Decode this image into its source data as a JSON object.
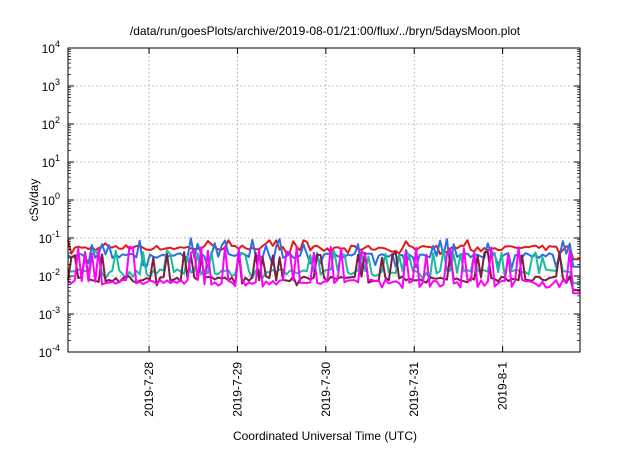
{
  "chart_data": {
    "type": "line",
    "title": "/data/run/goesPlots/archive/2019-08-01/21:00/flux/../bryn/5daysMoon.plot",
    "xlabel": "Coordinated Universal Time (UTC)",
    "ylabel": "cSv/day",
    "yscale": "log",
    "ylim": [
      0.0001,
      10000
    ],
    "xlim": [
      "2019-07-27T02:00",
      "2019-08-01T21:00"
    ],
    "grid": true,
    "y_ticks": [
      {
        "value": 0.0001,
        "base": "10",
        "exp": "-4"
      },
      {
        "value": 0.001,
        "base": "10",
        "exp": "-3"
      },
      {
        "value": 0.01,
        "base": "10",
        "exp": "-2"
      },
      {
        "value": 0.1,
        "base": "10",
        "exp": "-1"
      },
      {
        "value": 1,
        "base": "10",
        "exp": "0"
      },
      {
        "value": 10,
        "base": "10",
        "exp": "1"
      },
      {
        "value": 100,
        "base": "10",
        "exp": "2"
      },
      {
        "value": 1000,
        "base": "10",
        "exp": "3"
      },
      {
        "value": 10000,
        "base": "10",
        "exp": "4"
      }
    ],
    "x_ticks": [
      {
        "value": "2019-07-28T00:00",
        "label": "2019-7-28"
      },
      {
        "value": "2019-07-29T00:00",
        "label": "2019-7-29"
      },
      {
        "value": "2019-07-30T00:00",
        "label": "2019-7-30"
      },
      {
        "value": "2019-07-31T00:00",
        "label": "2019-7-31"
      },
      {
        "value": "2019-08-01T00:00",
        "label": "2019-8-1"
      }
    ],
    "series": [
      {
        "color": "#e31a1c",
        "base": 0.055,
        "dip": 0.045,
        "spike": 0.09
      },
      {
        "color": "#2b6fe0",
        "base": 0.035,
        "dip": 0.02,
        "spike": 0.1
      },
      {
        "color": "#1abc9c",
        "base": 0.013,
        "dip": 0.01,
        "spike": 0.05
      },
      {
        "color": "#7a1f3d",
        "base": 0.0085,
        "dip": 0.007,
        "spike": 0.045
      },
      {
        "color": "#ff00ff",
        "base": 0.007,
        "dip": 0.006,
        "spike": 0.06
      }
    ]
  }
}
